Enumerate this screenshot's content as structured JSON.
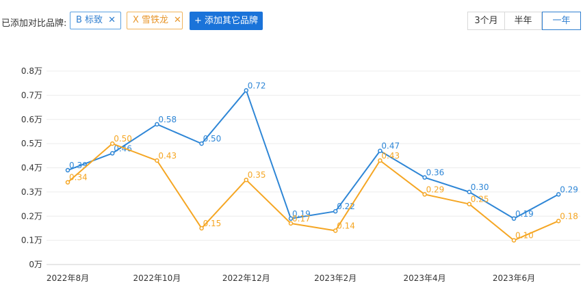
{
  "toolbar": {
    "compare_label": "已添加对比品牌:",
    "brands": [
      {
        "label": "B 标致",
        "color": "#2e7ed0"
      },
      {
        "label": "X 雪铁龙",
        "color": "#e8962a"
      }
    ],
    "add_button": "+ 添加其它品牌",
    "ranges": [
      "3个月",
      "半年",
      "一年"
    ],
    "active_range": "一年"
  },
  "chart_data": {
    "type": "line",
    "x": [
      "2022年8月",
      "2022年9月",
      "2022年10月",
      "2022年11月",
      "2022年12月",
      "2023年1月",
      "2023年2月",
      "2023年3月",
      "2023年4月",
      "2023年5月",
      "2023年6月",
      "2023年7月"
    ],
    "x_tick_labels": [
      "2022年8月",
      "2022年10月",
      "2022年12月",
      "2023年2月",
      "2023年4月",
      "2023年6月"
    ],
    "y_tick_labels": [
      "0万",
      "0.1万",
      "0.2万",
      "0.3万",
      "0.4万",
      "0.5万",
      "0.6万",
      "0.7万",
      "0.8万"
    ],
    "ylim": [
      0,
      0.8
    ],
    "grid": true,
    "series": [
      {
        "values": [
          0.39,
          0.46,
          0.58,
          0.5,
          0.72,
          0.19,
          0.22,
          0.47,
          0.36,
          0.3,
          0.19,
          0.29
        ],
        "color": "#2e86d6"
      },
      {
        "values": [
          0.34,
          0.5,
          0.43,
          0.15,
          0.35,
          0.17,
          0.14,
          0.43,
          0.29,
          0.25,
          0.1,
          0.18
        ],
        "color": "#f5a623"
      }
    ]
  }
}
